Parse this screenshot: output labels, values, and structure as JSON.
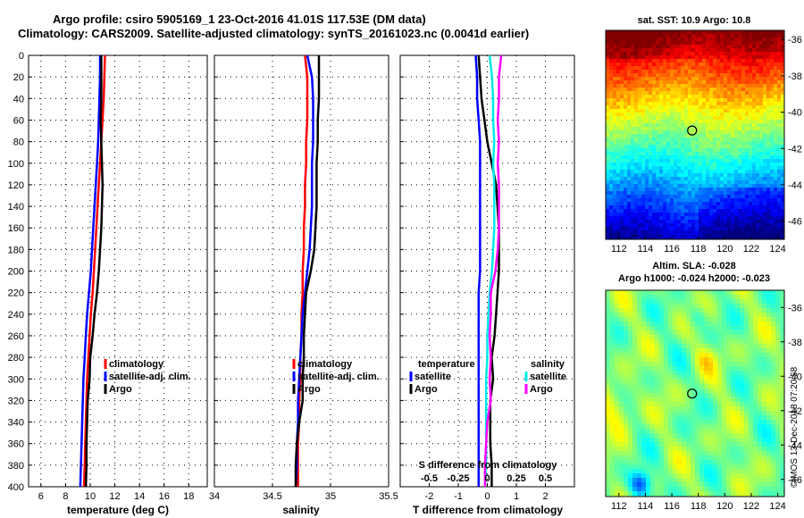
{
  "title": {
    "line1": "Argo profile: csiro 5905169_1 23-Oct-2016 41.01S 117.53E (DM data)",
    "line2": "Climatology: CARS2009. Satellite-adjusted climatology: synTS_20161023.nc (0.0041d earlier)"
  },
  "colors": {
    "climatology": "#ff0000",
    "satellite_adj": "#0000ff",
    "argo": "#000000",
    "satellite_diff_T": "#0000ff",
    "satellite_diff_S": "#00e8e8",
    "argo_diff_S": "#ff00ff",
    "grid": "#000000"
  },
  "chart_data": [
    {
      "type": "line",
      "panel": "temperature",
      "xlabel": "temperature (deg C)",
      "ylabel": "",
      "xlim": [
        5,
        19.5
      ],
      "ylim": [
        400,
        0
      ],
      "grid": true,
      "xticks": [
        6,
        8,
        10,
        12,
        14,
        16,
        18
      ],
      "yticks": [
        0,
        20,
        40,
        60,
        80,
        100,
        120,
        140,
        160,
        180,
        200,
        220,
        240,
        260,
        280,
        300,
        320,
        340,
        360,
        380,
        400
      ],
      "legend": [
        "climatology",
        "satellite-adj. clim.",
        "Argo"
      ],
      "legend_location": "lower-right",
      "series": [
        {
          "name": "climatology",
          "color_key": "climatology",
          "depth": [
            0,
            20,
            40,
            60,
            80,
            100,
            120,
            140,
            160,
            180,
            200,
            220,
            240,
            260,
            280,
            300,
            320,
            340,
            360,
            380,
            400
          ],
          "values": [
            11.2,
            11.15,
            11.1,
            11.0,
            10.9,
            10.8,
            10.7,
            10.6,
            10.5,
            10.4,
            10.3,
            10.2,
            10.05,
            9.95,
            9.85,
            9.75,
            9.7,
            9.65,
            9.6,
            9.55,
            9.5
          ]
        },
        {
          "name": "satellite-adj. clim.",
          "color_key": "satellite_adj",
          "depth": [
            0,
            20,
            40,
            60,
            80,
            100,
            120,
            140,
            160,
            180,
            200,
            220,
            240,
            260,
            280,
            300,
            320,
            340,
            360,
            380,
            400
          ],
          "values": [
            10.8,
            10.8,
            10.75,
            10.7,
            10.65,
            10.55,
            10.45,
            10.35,
            10.25,
            10.15,
            10.05,
            9.9,
            9.75,
            9.65,
            9.55,
            9.45,
            9.4,
            9.35,
            9.3,
            9.25,
            9.2
          ]
        },
        {
          "name": "Argo",
          "color_key": "argo",
          "depth": [
            0,
            20,
            40,
            60,
            80,
            100,
            120,
            140,
            160,
            180,
            200,
            220,
            240,
            260,
            280,
            300,
            320,
            340,
            360,
            380,
            400
          ],
          "values": [
            10.9,
            10.9,
            10.9,
            10.85,
            10.9,
            10.95,
            11.0,
            10.95,
            10.9,
            10.8,
            10.7,
            10.55,
            10.35,
            10.2,
            10.0,
            9.95,
            9.8,
            9.75,
            9.7,
            9.7,
            9.65
          ]
        }
      ]
    },
    {
      "type": "line",
      "panel": "salinity",
      "xlabel": "salinity",
      "xlim": [
        34,
        35.5
      ],
      "ylim": [
        400,
        0
      ],
      "grid": true,
      "xticks": [
        34,
        34.5,
        35,
        35.5
      ],
      "yticks": [
        0,
        20,
        40,
        60,
        80,
        100,
        120,
        140,
        160,
        180,
        200,
        220,
        240,
        260,
        280,
        300,
        320,
        340,
        360,
        380,
        400
      ],
      "legend": [
        "climatology",
        "satellite-adj. clim.",
        "Argo"
      ],
      "legend_location": "lower-right",
      "series": [
        {
          "name": "climatology",
          "color_key": "climatology",
          "depth": [
            0,
            20,
            40,
            60,
            80,
            100,
            120,
            140,
            160,
            180,
            200,
            220,
            240,
            260,
            280,
            300,
            320,
            340,
            360,
            380,
            400
          ],
          "values": [
            34.78,
            34.8,
            34.8,
            34.8,
            34.79,
            34.79,
            34.78,
            34.78,
            34.77,
            34.77,
            34.76,
            34.76,
            34.75,
            34.75,
            34.74,
            34.74,
            34.73,
            34.73,
            34.72,
            34.72,
            34.72
          ]
        },
        {
          "name": "satellite-adj. clim.",
          "color_key": "satellite_adj",
          "depth": [
            0,
            20,
            40,
            60,
            80,
            100,
            120,
            140,
            160,
            180,
            200,
            220,
            240,
            260,
            280,
            300,
            320,
            340,
            360,
            380,
            400
          ],
          "values": [
            34.8,
            34.84,
            34.85,
            34.85,
            34.85,
            34.84,
            34.84,
            34.84,
            34.83,
            34.82,
            34.8,
            34.78,
            34.76,
            34.75,
            34.74,
            34.73,
            34.72,
            34.72,
            34.71,
            34.71,
            34.7
          ]
        },
        {
          "name": "Argo",
          "color_key": "argo",
          "depth": [
            0,
            20,
            40,
            60,
            80,
            100,
            120,
            140,
            160,
            180,
            200,
            220,
            240,
            260,
            280,
            300,
            320,
            340,
            360,
            380,
            400
          ],
          "values": [
            34.9,
            34.9,
            34.9,
            34.89,
            34.89,
            34.88,
            34.88,
            34.88,
            34.87,
            34.86,
            34.83,
            34.79,
            34.78,
            34.77,
            34.77,
            34.76,
            34.76,
            34.73,
            34.71,
            34.7,
            34.7
          ]
        }
      ]
    },
    {
      "type": "line",
      "panel": "difference",
      "xlabel": "T difference from climatology",
      "xlabel2": "S difference from climatology",
      "xlim": [
        -3,
        3
      ],
      "xlim2": [
        -0.75,
        0.75
      ],
      "ylim": [
        400,
        0
      ],
      "grid": true,
      "xticks": [
        -2,
        -1,
        0,
        1,
        2
      ],
      "xticks2": [
        -0.5,
        -0.25,
        0,
        0.25,
        0.5
      ],
      "yticks": [
        0,
        20,
        40,
        60,
        80,
        100,
        120,
        140,
        160,
        180,
        200,
        220,
        240,
        260,
        280,
        300,
        320,
        340,
        360,
        380,
        400
      ],
      "legend_temperature": {
        "header": "temperature",
        "entries": [
          "satellite",
          "Argo"
        ]
      },
      "legend_salinity": {
        "header": "salinity",
        "entries": [
          "satellite",
          "Argo"
        ]
      },
      "series": [
        {
          "name": "temperature satellite",
          "color_key": "satellite_diff_T",
          "axis": "T",
          "depth": [
            0,
            20,
            40,
            60,
            80,
            100,
            120,
            140,
            160,
            180,
            200,
            220,
            240,
            260,
            280,
            300,
            320,
            340,
            360,
            380,
            400
          ],
          "values": [
            -0.4,
            -0.35,
            -0.35,
            -0.3,
            -0.25,
            -0.25,
            -0.25,
            -0.25,
            -0.25,
            -0.25,
            -0.25,
            -0.3,
            -0.3,
            -0.3,
            -0.3,
            -0.3,
            -0.3,
            -0.3,
            -0.3,
            -0.3,
            -0.3
          ]
        },
        {
          "name": "temperature Argo",
          "color_key": "argo",
          "axis": "T",
          "depth": [
            0,
            20,
            40,
            60,
            80,
            100,
            120,
            140,
            160,
            180,
            200,
            220,
            240,
            260,
            280,
            300,
            320,
            340,
            360,
            380,
            400
          ],
          "values": [
            -0.3,
            -0.25,
            -0.2,
            -0.1,
            0.0,
            0.15,
            0.3,
            0.35,
            0.4,
            0.4,
            0.4,
            0.35,
            0.3,
            0.25,
            0.15,
            0.2,
            0.1,
            0.1,
            0.1,
            0.15,
            0.15
          ]
        },
        {
          "name": "salinity satellite",
          "color_key": "satellite_diff_S",
          "axis": "S",
          "depth": [
            0,
            20,
            40,
            60,
            80,
            100,
            120,
            140,
            160,
            180,
            200,
            220,
            240,
            260,
            280,
            300,
            320,
            340,
            360,
            380,
            400
          ],
          "values": [
            0.02,
            0.04,
            0.05,
            0.05,
            0.06,
            0.05,
            0.06,
            0.06,
            0.06,
            0.05,
            0.04,
            0.02,
            0.01,
            0.0,
            0.0,
            -0.01,
            -0.01,
            -0.01,
            -0.01,
            -0.01,
            -0.02
          ]
        },
        {
          "name": "salinity Argo",
          "color_key": "argo_diff_S",
          "axis": "S",
          "depth": [
            0,
            20,
            40,
            60,
            80,
            100,
            120,
            140,
            160,
            180,
            200,
            220,
            240,
            260,
            280,
            300,
            320,
            340,
            360,
            380,
            400
          ],
          "values": [
            0.12,
            0.1,
            0.1,
            0.09,
            0.1,
            0.09,
            0.1,
            0.1,
            0.1,
            0.09,
            0.07,
            0.03,
            0.03,
            0.02,
            0.03,
            0.02,
            0.03,
            0.0,
            -0.01,
            -0.02,
            -0.02
          ]
        }
      ]
    },
    {
      "type": "heatmap",
      "panel": "sst_map",
      "title": "sat. SST: 10.9 Argo: 10.8",
      "xlim": [
        111,
        124.5
      ],
      "ylim": [
        -47,
        -35.5
      ],
      "xticks": [
        112,
        114,
        116,
        118,
        120,
        122,
        124
      ],
      "yticks": [
        -36,
        -38,
        -40,
        -42,
        -44,
        -46
      ],
      "marker": {
        "lon": 117.53,
        "lat": -41.01
      }
    },
    {
      "type": "heatmap",
      "panel": "sla_map",
      "title": "Altim. SLA: -0.028",
      "subtitle": "Argo h1000: -0.024 h2000: -0.023",
      "xlim": [
        111,
        124.5
      ],
      "ylim": [
        -47,
        -35
      ],
      "xticks": [
        112,
        114,
        116,
        118,
        120,
        122,
        124
      ],
      "yticks": [
        -36,
        -38,
        -40,
        -42,
        -44,
        -46
      ],
      "marker": {
        "lon": 117.53,
        "lat": -41.01
      }
    }
  ],
  "stamp": "©IMOS 13-Dec-2018 07:20:58"
}
